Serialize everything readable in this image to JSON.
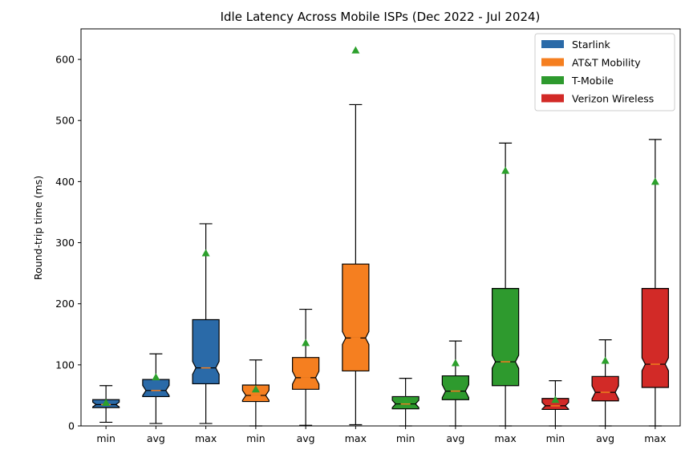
{
  "chart_data": {
    "type": "box",
    "title": "Idle Latency Across Mobile ISPs (Dec 2022 - Jul 2024)",
    "xlabel": "",
    "ylabel": "Round-trip time (ms)",
    "ylim": [
      0,
      650
    ],
    "yticks": [
      0,
      100,
      200,
      300,
      400,
      500,
      600
    ],
    "categories": [
      "min",
      "avg",
      "max",
      "min",
      "avg",
      "max",
      "min",
      "avg",
      "max",
      "min",
      "avg",
      "max"
    ],
    "legend": {
      "placement": "top-right"
    },
    "series": [
      {
        "name": "Starlink",
        "color": "#2a6aa8",
        "boxes": [
          {
            "stat": "min",
            "whisker_low": 6,
            "q1": 30,
            "median": 35,
            "q3": 43,
            "whisker_high": 66,
            "mean": 38
          },
          {
            "stat": "avg",
            "whisker_low": 4,
            "q1": 48,
            "median": 58,
            "q3": 76,
            "whisker_high": 118,
            "mean": 80
          },
          {
            "stat": "max",
            "whisker_low": 4,
            "q1": 69,
            "median": 95,
            "q3": 174,
            "whisker_high": 331,
            "mean": 283
          }
        ]
      },
      {
        "name": "AT&T Mobility",
        "color": "#f57f20",
        "boxes": [
          {
            "stat": "min",
            "whisker_low": 0,
            "q1": 40,
            "median": 50,
            "q3": 67,
            "whisker_high": 108,
            "mean": 60
          },
          {
            "stat": "avg",
            "whisker_low": 1,
            "q1": 60,
            "median": 79,
            "q3": 112,
            "whisker_high": 191,
            "mean": 136
          },
          {
            "stat": "max",
            "whisker_low": 2,
            "q1": 90,
            "median": 144,
            "q3": 265,
            "whisker_high": 526,
            "mean": 615
          }
        ]
      },
      {
        "name": "T-Mobile",
        "color": "#2e9a2e",
        "boxes": [
          {
            "stat": "min",
            "whisker_low": 0,
            "q1": 28,
            "median": 36,
            "q3": 48,
            "whisker_high": 78,
            "mean": 42
          },
          {
            "stat": "avg",
            "whisker_low": 0,
            "q1": 43,
            "median": 57,
            "q3": 82,
            "whisker_high": 139,
            "mean": 103
          },
          {
            "stat": "max",
            "whisker_low": 0,
            "q1": 66,
            "median": 105,
            "q3": 225,
            "whisker_high": 463,
            "mean": 418
          }
        ]
      },
      {
        "name": "Verizon Wireless",
        "color": "#d22a27",
        "boxes": [
          {
            "stat": "min",
            "whisker_low": 0,
            "q1": 27,
            "median": 33,
            "q3": 45,
            "whisker_high": 74,
            "mean": 43
          },
          {
            "stat": "avg",
            "whisker_low": 0,
            "q1": 41,
            "median": 55,
            "q3": 81,
            "whisker_high": 141,
            "mean": 107
          },
          {
            "stat": "max",
            "whisker_low": 0,
            "q1": 63,
            "median": 101,
            "q3": 225,
            "whisker_high": 469,
            "mean": 400
          }
        ]
      }
    ]
  }
}
